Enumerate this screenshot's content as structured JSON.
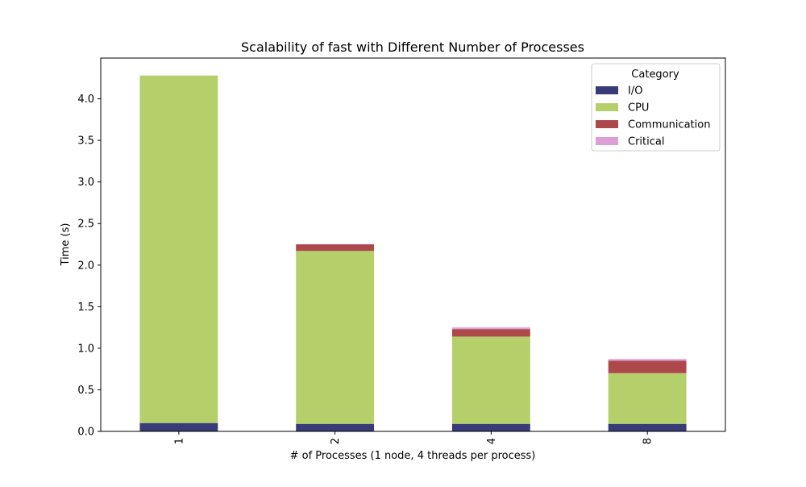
{
  "chart_data": {
    "type": "bar",
    "stacked": true,
    "title": "Scalability of fast with Different Number of Processes",
    "xlabel": "# of Processes (1 node, 4 threads per process)",
    "ylabel": "Time (s)",
    "categories": [
      "1",
      "2",
      "4",
      "8"
    ],
    "ylim": [
      0,
      4.49
    ],
    "yticks": [
      "0.0",
      "0.5",
      "1.0",
      "1.5",
      "2.0",
      "2.5",
      "3.0",
      "3.5",
      "4.0"
    ],
    "grid": false,
    "legend": {
      "title": "Category",
      "position": "top-right"
    },
    "series": [
      {
        "name": "I/O",
        "color": "#393b79",
        "values": [
          0.1,
          0.09,
          0.09,
          0.09
        ]
      },
      {
        "name": "CPU",
        "color": "#b5cf6b",
        "values": [
          4.18,
          2.08,
          1.05,
          0.61
        ]
      },
      {
        "name": "Communication",
        "color": "#ad494a",
        "values": [
          0.0,
          0.08,
          0.09,
          0.15
        ]
      },
      {
        "name": "Critical",
        "color": "#de9ed6",
        "values": [
          0.0,
          0.0,
          0.02,
          0.02
        ]
      }
    ]
  }
}
